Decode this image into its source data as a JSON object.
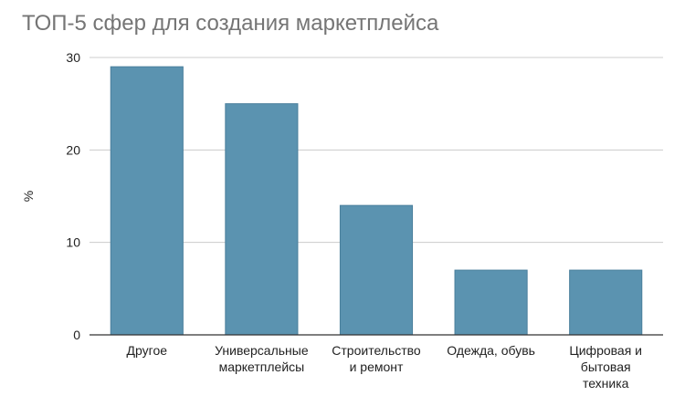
{
  "chart_data": {
    "type": "bar",
    "title": "ТОП-5 сфер для создания маркетплейса",
    "ylabel": "%",
    "xlabel": "",
    "categories": [
      [
        "Другое"
      ],
      [
        "Универсальные",
        "маркетплейсы"
      ],
      [
        "Строительство",
        "и ремонт"
      ],
      [
        "Одежда, обувь"
      ],
      [
        "Цифровая и",
        "бытовая",
        "техника"
      ]
    ],
    "values": [
      29,
      25,
      14,
      7,
      7
    ],
    "ylim": [
      0,
      30
    ],
    "yticks": [
      "0",
      "10",
      "20",
      "30"
    ],
    "grid": true,
    "legend": "none",
    "bar_color": "#5b93b0",
    "bar_stroke": "#4a7f9c"
  }
}
